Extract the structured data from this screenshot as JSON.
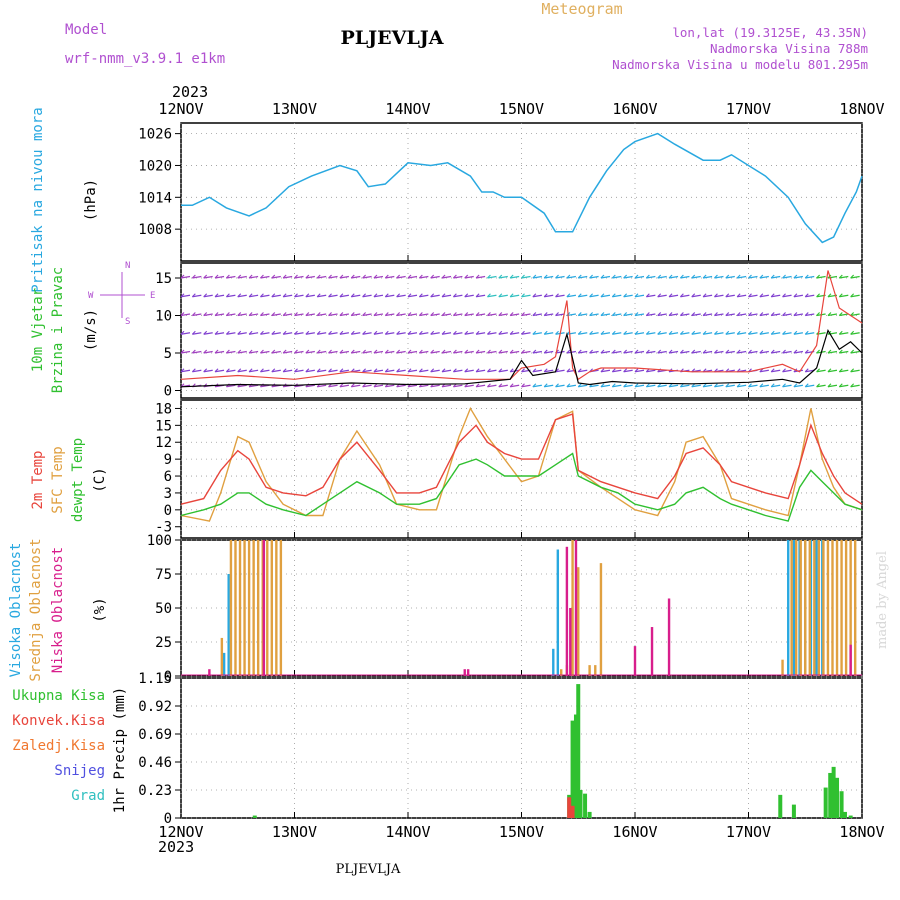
{
  "header": {
    "model_label": "Model",
    "model_name": "wrf-nmm_v3.9.1  e1km",
    "station": "PLJEVLJA",
    "meteogram_label": "Meteogram",
    "coords": "lon,lat (19.3125E, 43.35N)",
    "elevation": "Nadmorska Visina 788m",
    "model_elevation": "Nadmorska Visina u modelu 801.295m",
    "year_top": "2023",
    "year_bottom": "2023",
    "footer_station": "PLJEVLJA",
    "watermark": "made by Angel"
  },
  "colors": {
    "pressure": "#29a8e0",
    "temp2m": "#e8453c",
    "sfc_temp": "#e0a040",
    "dewpoint": "#30c030",
    "high_cloud": "#29a8e0",
    "mid_cloud": "#e0a040",
    "low_cloud": "#d81e8c",
    "total_precip": "#30c030",
    "conv_precip": "#e8453c",
    "frozen_precip": "#f07830",
    "snow": "#5050e0",
    "hail": "#30c0c0",
    "label_purple": "#b050d0",
    "wind_axis_purple": "#b050d0"
  },
  "x_axis": {
    "ticks": [
      "12NOV",
      "13NOV",
      "14NOV",
      "15NOV",
      "16NOV",
      "17NOV",
      "18NOV"
    ]
  },
  "panel_labels": {
    "pressure": [
      "Pritisak na nivou mora",
      "(hPa)"
    ],
    "wind": [
      "10m Vjetar",
      "Brzina i Pravac",
      "(m/s)"
    ],
    "wind_compass": {
      "n": "N",
      "s": "S",
      "w": "W",
      "e": "E"
    },
    "temp": [
      "2m Temp",
      "SFC Temp",
      "dewpt Temp",
      "(C)"
    ],
    "cloud": [
      "Visoka Oblacnost",
      "Srednja Oblacnost",
      "Niska Oblacnost",
      "(%)"
    ],
    "precip_axis": "1hr Precip (mm)",
    "precip_legend": [
      "Ukupna Kisa",
      "Konvek.Kisa",
      "Zaledj.Kisa",
      "Snijeg",
      "Grad"
    ]
  },
  "chart_data": [
    {
      "type": "line",
      "name": "pressure",
      "x_unit": "days since 12NOV 00h",
      "ylim": [
        1002,
        1028
      ],
      "yticks": [
        "1026",
        "1020",
        "1014",
        "1008"
      ],
      "ytick_values": [
        1026,
        1020,
        1014,
        1008
      ],
      "grid": true,
      "x": [
        0,
        0.1,
        0.25,
        0.4,
        0.6,
        0.75,
        0.95,
        1.15,
        1.4,
        1.55,
        1.65,
        1.8,
        2.0,
        2.2,
        2.35,
        2.55,
        2.65,
        2.75,
        2.85,
        3.0,
        3.2,
        3.3,
        3.45,
        3.6,
        3.75,
        3.9,
        4.0,
        4.2,
        4.35,
        4.6,
        4.75,
        4.85,
        5.0,
        5.15,
        5.35,
        5.5,
        5.65,
        5.75,
        5.85,
        5.95,
        6.0
      ],
      "y": [
        1012.5,
        1012.5,
        1014,
        1012,
        1010.5,
        1012,
        1016,
        1018,
        1020,
        1019,
        1016,
        1016.5,
        1020.5,
        1020,
        1020.5,
        1018,
        1015,
        1015,
        1014,
        1014,
        1011,
        1007.5,
        1007.5,
        1014,
        1019,
        1023,
        1024.5,
        1026,
        1024,
        1021,
        1021,
        1022,
        1020,
        1018,
        1014,
        1009,
        1005.5,
        1006.5,
        1011,
        1015,
        1018
      ]
    },
    {
      "type": "line",
      "name": "wind_speed",
      "x_unit": "days since 12NOV 00h",
      "ylim": [
        -1,
        17
      ],
      "yticks": [
        "15",
        "10",
        "5",
        "0"
      ],
      "ytick_values": [
        15,
        10,
        5,
        0
      ],
      "grid": true,
      "series": [
        {
          "name": "10m wind speed (m/s)",
          "x": [
            0,
            0.5,
            1,
            1.5,
            2,
            2.5,
            2.9,
            3.0,
            3.1,
            3.3,
            3.4,
            3.5,
            3.6,
            3.8,
            4.0,
            4.5,
            5.0,
            5.3,
            5.45,
            5.6,
            5.7,
            5.8,
            5.9,
            6.0
          ],
          "y": [
            0.5,
            0.8,
            0.7,
            1.0,
            0.8,
            0.9,
            1.5,
            4.0,
            2.0,
            2.5,
            7.5,
            1.0,
            0.8,
            1.2,
            1.0,
            0.9,
            1.1,
            1.5,
            1.0,
            3.0,
            8.0,
            5.5,
            6.5,
            5.0
          ]
        },
        {
          "name": "gust (m/s)",
          "x": [
            0,
            0.5,
            1,
            1.5,
            2,
            2.5,
            2.9,
            3.0,
            3.2,
            3.3,
            3.4,
            3.45,
            3.5,
            3.6,
            3.7,
            4.0,
            4.5,
            5.0,
            5.3,
            5.45,
            5.6,
            5.7,
            5.8,
            5.9,
            6.0
          ],
          "y": [
            1.5,
            2.0,
            1.5,
            2.5,
            2.0,
            1.5,
            1.5,
            3.0,
            3.5,
            4.5,
            12,
            3,
            1.5,
            2.5,
            3,
            3,
            2.5,
            2.5,
            3.5,
            2.5,
            6,
            16,
            11,
            10,
            9
          ]
        }
      ]
    },
    {
      "type": "line",
      "name": "temperature",
      "x_unit": "days since 12NOV 00h",
      "ylim": [
        -5,
        19.5
      ],
      "yticks": [
        "18",
        "15",
        "12",
        "9",
        "6",
        "3",
        "0",
        "-3"
      ],
      "ytick_values": [
        18,
        15,
        12,
        9,
        6,
        3,
        0,
        -3
      ],
      "grid": true,
      "series": [
        {
          "name": "2m Temp",
          "x": [
            0,
            0.2,
            0.35,
            0.5,
            0.6,
            0.75,
            0.9,
            1.1,
            1.25,
            1.4,
            1.55,
            1.75,
            1.9,
            2.1,
            2.25,
            2.45,
            2.6,
            2.7,
            2.85,
            3.0,
            3.15,
            3.3,
            3.45,
            3.5,
            3.7,
            3.85,
            4.0,
            4.2,
            4.35,
            4.45,
            4.6,
            4.75,
            4.85,
            5.0,
            5.15,
            5.35,
            5.45,
            5.55,
            5.65,
            5.75,
            5.85,
            6.0
          ],
          "y": [
            1,
            2,
            7,
            10.5,
            9,
            4,
            3,
            2.5,
            4,
            9,
            12,
            7,
            3,
            3,
            4,
            12,
            15,
            12,
            10,
            9,
            9,
            16,
            17,
            7,
            5,
            4,
            3,
            2,
            6,
            10,
            11,
            8,
            5,
            4,
            3,
            2,
            8,
            15,
            10,
            6,
            3,
            1
          ]
        },
        {
          "name": "SFC Temp",
          "x": [
            0,
            0.25,
            0.35,
            0.5,
            0.6,
            0.75,
            0.9,
            1.1,
            1.25,
            1.4,
            1.55,
            1.75,
            1.9,
            2.1,
            2.25,
            2.45,
            2.55,
            2.7,
            2.85,
            3.0,
            3.15,
            3.3,
            3.45,
            3.5,
            3.7,
            3.85,
            4.0,
            4.2,
            4.35,
            4.45,
            4.6,
            4.75,
            4.85,
            5.0,
            5.15,
            5.35,
            5.45,
            5.55,
            5.65,
            5.75,
            5.85,
            6.0
          ],
          "y": [
            -1,
            -2,
            3,
            13,
            12,
            5,
            1,
            -1,
            -1,
            9,
            14,
            8,
            1,
            0,
            0,
            13,
            18,
            13,
            9,
            5,
            6,
            16,
            17.5,
            7,
            4,
            2,
            0,
            -1,
            5,
            12,
            13,
            8,
            2,
            1,
            0,
            -1,
            8,
            18,
            9,
            4,
            1,
            0
          ]
        },
        {
          "name": "dewpt Temp",
          "x": [
            0,
            0.2,
            0.35,
            0.5,
            0.6,
            0.75,
            0.9,
            1.1,
            1.25,
            1.4,
            1.55,
            1.75,
            1.9,
            2.1,
            2.25,
            2.45,
            2.6,
            2.7,
            2.85,
            3.0,
            3.15,
            3.3,
            3.45,
            3.5,
            3.7,
            3.85,
            4.0,
            4.2,
            4.35,
            4.45,
            4.6,
            4.75,
            4.85,
            5.0,
            5.15,
            5.35,
            5.45,
            5.55,
            5.65,
            5.75,
            5.85,
            6.0
          ],
          "y": [
            -1,
            0,
            1,
            3,
            3,
            1,
            0,
            -1,
            1,
            3,
            5,
            3,
            1,
            1,
            2,
            8,
            9,
            8,
            6,
            6,
            6,
            8,
            10,
            6,
            4,
            3,
            1,
            0,
            1,
            3,
            4,
            2,
            1,
            0,
            -1,
            -2,
            4,
            7,
            5,
            3,
            1,
            0
          ]
        }
      ]
    },
    {
      "type": "bar",
      "name": "cloud_cover",
      "x_unit": "days since 12NOV 00h",
      "ylim": [
        0,
        100
      ],
      "yticks": [
        "100",
        "75",
        "50",
        "25",
        "0"
      ],
      "ytick_values": [
        100,
        75,
        50,
        25,
        0
      ],
      "grid": true,
      "series": [
        {
          "name": "Visoka Oblacnost",
          "x": [
            0.38,
            0.42,
            3.28,
            3.32,
            5.35,
            5.4,
            5.45,
            5.5,
            5.55,
            5.6,
            5.65
          ],
          "values": [
            17,
            75,
            20,
            93,
            100,
            100,
            100,
            100,
            100,
            100,
            100
          ]
        },
        {
          "name": "Srednja Oblacnost",
          "x": [
            0.36,
            0.44,
            0.48,
            0.52,
            0.56,
            0.6,
            0.64,
            0.68,
            0.72,
            0.76,
            0.8,
            0.84,
            0.88,
            3.35,
            3.4,
            3.45,
            3.5,
            3.6,
            3.65,
            3.7,
            5.3,
            5.38,
            5.42,
            5.46,
            5.5,
            5.54,
            5.58,
            5.62,
            5.66,
            5.7,
            5.74,
            5.78,
            5.82,
            5.86,
            5.9,
            5.94
          ],
          "values": [
            28,
            100,
            100,
            100,
            100,
            100,
            100,
            100,
            100,
            100,
            100,
            100,
            100,
            5,
            8,
            100,
            80,
            8,
            8,
            83,
            12,
            100,
            100,
            100,
            100,
            100,
            100,
            100,
            100,
            100,
            100,
            100,
            100,
            100,
            100,
            100
          ]
        },
        {
          "name": "Niska Oblacnost",
          "x": [
            0.25,
            0.73,
            2.5,
            2.53,
            3.4,
            3.43,
            3.48,
            4.0,
            4.15,
            4.3,
            5.9
          ],
          "values": [
            5,
            100,
            5,
            5,
            95,
            50,
            100,
            22,
            36,
            57,
            23
          ]
        }
      ]
    },
    {
      "type": "bar",
      "name": "precipitation",
      "x_unit": "days since 12NOV 00h",
      "ylim": [
        0,
        1.15
      ],
      "yticks": [
        "1.15",
        "0.92",
        "0.69",
        "0.46",
        "0.23",
        "0"
      ],
      "ytick_values": [
        1.15,
        0.92,
        0.69,
        0.46,
        0.23,
        0
      ],
      "grid": true,
      "series": [
        {
          "name": "Ukupna Kisa",
          "x": [
            0.65,
            3.42,
            3.45,
            3.48,
            3.5,
            3.52,
            3.56,
            3.6,
            5.28,
            5.4,
            5.68,
            5.72,
            5.75,
            5.78,
            5.82,
            5.85,
            5.9
          ],
          "values": [
            0.02,
            0.19,
            0.8,
            0.85,
            1.1,
            0.23,
            0.2,
            0.05,
            0.19,
            0.11,
            0.25,
            0.37,
            0.42,
            0.33,
            0.22,
            0.05,
            0.02
          ]
        },
        {
          "name": "Konvek.Kisa",
          "x": [
            3.42,
            3.45
          ],
          "values": [
            0.17,
            0.1
          ]
        },
        {
          "name": "Zaledj.Kisa",
          "x": [],
          "values": []
        },
        {
          "name": "Snijeg",
          "x": [],
          "values": []
        },
        {
          "name": "Grad",
          "x": [],
          "values": []
        }
      ]
    }
  ]
}
